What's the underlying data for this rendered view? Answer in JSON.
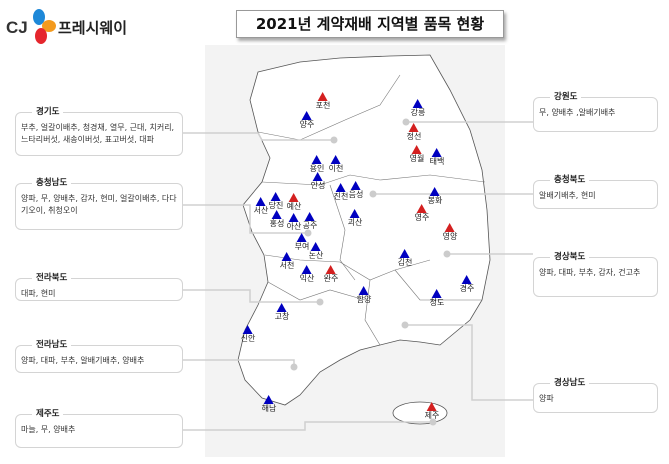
{
  "header": {
    "logo_text": "CJ",
    "brand": "프레시웨이",
    "title": "2021년 계약재배 지역별 품목 현황"
  },
  "colors": {
    "blue_marker": "#0000c0",
    "red_marker": "#d42020",
    "logo_blue": "#1e88d8",
    "logo_orange": "#f39a1e",
    "logo_red": "#e5262d"
  },
  "regions": [
    {
      "name": "경기도",
      "items": "부추, 얼갈이배추, 청경채, 열무, 근대, 치커리, 느타리버섯, 새송이버섯, 표고버섯, 대파"
    },
    {
      "name": "충청남도",
      "items": "양파, 무, 양배추, 감자, 현미, 얼갈이배추, 다다기오이, 취청오이"
    },
    {
      "name": "전라북도",
      "items": "대파, 현미"
    },
    {
      "name": "전라남도",
      "items": "양파, 대파, 부추, 알배기배추, 양배추"
    },
    {
      "name": "제주도",
      "items": "마늘, 무, 양배추"
    },
    {
      "name": "강원도",
      "items": "무, 양배추 ,알배기배추"
    },
    {
      "name": "충청북도",
      "items": "알배기배추, 현미"
    },
    {
      "name": "경상북도",
      "items": "양파, 대파, 부추, 감자, 건고추"
    },
    {
      "name": "경상남도",
      "items": "양파"
    }
  ],
  "markers": [
    {
      "name": "포천",
      "color": "red"
    },
    {
      "name": "양주",
      "color": "blue"
    },
    {
      "name": "강릉",
      "color": "blue"
    },
    {
      "name": "정선",
      "color": "red"
    },
    {
      "name": "영월",
      "color": "red"
    },
    {
      "name": "태백",
      "color": "blue"
    },
    {
      "name": "용인",
      "color": "blue"
    },
    {
      "name": "이천",
      "color": "blue"
    },
    {
      "name": "안성",
      "color": "blue"
    },
    {
      "name": "진천",
      "color": "blue"
    },
    {
      "name": "음성",
      "color": "blue"
    },
    {
      "name": "봉화",
      "color": "blue"
    },
    {
      "name": "서산",
      "color": "blue"
    },
    {
      "name": "당진",
      "color": "blue"
    },
    {
      "name": "예산",
      "color": "red"
    },
    {
      "name": "영주",
      "color": "red"
    },
    {
      "name": "홍성",
      "color": "blue"
    },
    {
      "name": "아산",
      "color": "blue"
    },
    {
      "name": "공주",
      "color": "blue"
    },
    {
      "name": "괴산",
      "color": "blue"
    },
    {
      "name": "영양",
      "color": "red"
    },
    {
      "name": "부여",
      "color": "blue"
    },
    {
      "name": "논산",
      "color": "blue"
    },
    {
      "name": "서천",
      "color": "blue"
    },
    {
      "name": "김천",
      "color": "blue"
    },
    {
      "name": "익산",
      "color": "blue"
    },
    {
      "name": "완주",
      "color": "red"
    },
    {
      "name": "함양",
      "color": "blue"
    },
    {
      "name": "경주",
      "color": "blue"
    },
    {
      "name": "청도",
      "color": "blue"
    },
    {
      "name": "고창",
      "color": "blue"
    },
    {
      "name": "신안",
      "color": "blue"
    },
    {
      "name": "해남",
      "color": "blue"
    },
    {
      "name": "제주",
      "color": "red"
    }
  ]
}
